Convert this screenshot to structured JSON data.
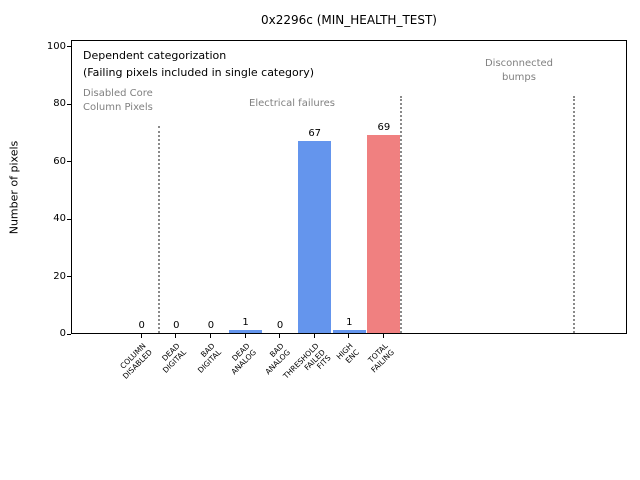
{
  "window": {
    "title": "0x2296c (MIN_HEALTH_TEST)"
  },
  "chart_data": {
    "type": "bar",
    "title": "0x2296c (MIN_HEALTH_TEST)",
    "xlabel": "",
    "ylabel": "Number of pixels",
    "categories": [
      "COLUMN\nDISABLED",
      "DEAD\nDIGITAL",
      "BAD\nDIGITAL",
      "DEAD\nANALOG",
      "BAD\nANALOG",
      "THRESHOLD\nFAILED\nFITS",
      "HIGH\nENC",
      "TOTAL\nFAILING"
    ],
    "values": [
      0,
      0,
      0,
      1,
      0,
      67,
      1,
      69
    ],
    "value_labels": [
      "0",
      "0",
      "0",
      "1",
      "0",
      "67",
      "1",
      "69"
    ],
    "bar_colors": [
      "#6495ed",
      "#6495ed",
      "#6495ed",
      "#6495ed",
      "#6495ed",
      "#6495ed",
      "#6495ed",
      "#f08080"
    ],
    "yticks": [
      "0",
      "20",
      "40",
      "60",
      "80",
      "100"
    ],
    "ytick_values": [
      0,
      20,
      40,
      60,
      80,
      100
    ],
    "ylim": [
      0,
      102.3
    ],
    "grid": false,
    "legend": null,
    "annotations": {
      "primary": "Dependent categorization",
      "secondary": "(Failing pixels included in single category)",
      "regions": [
        {
          "label": "Disabled Core\nColumn Pixels"
        },
        {
          "label": "Electrical failures"
        },
        {
          "label": "Disconnected\nbumps"
        }
      ]
    },
    "dividers_at_category": [
      0.5,
      7.5,
      12.5
    ]
  },
  "colors": {
    "bar_blue": "#6495ed",
    "bar_red": "#f08080",
    "annotation_gray": "#808080",
    "divider_gray": "#8a8a8a",
    "background": "#ffffff"
  }
}
